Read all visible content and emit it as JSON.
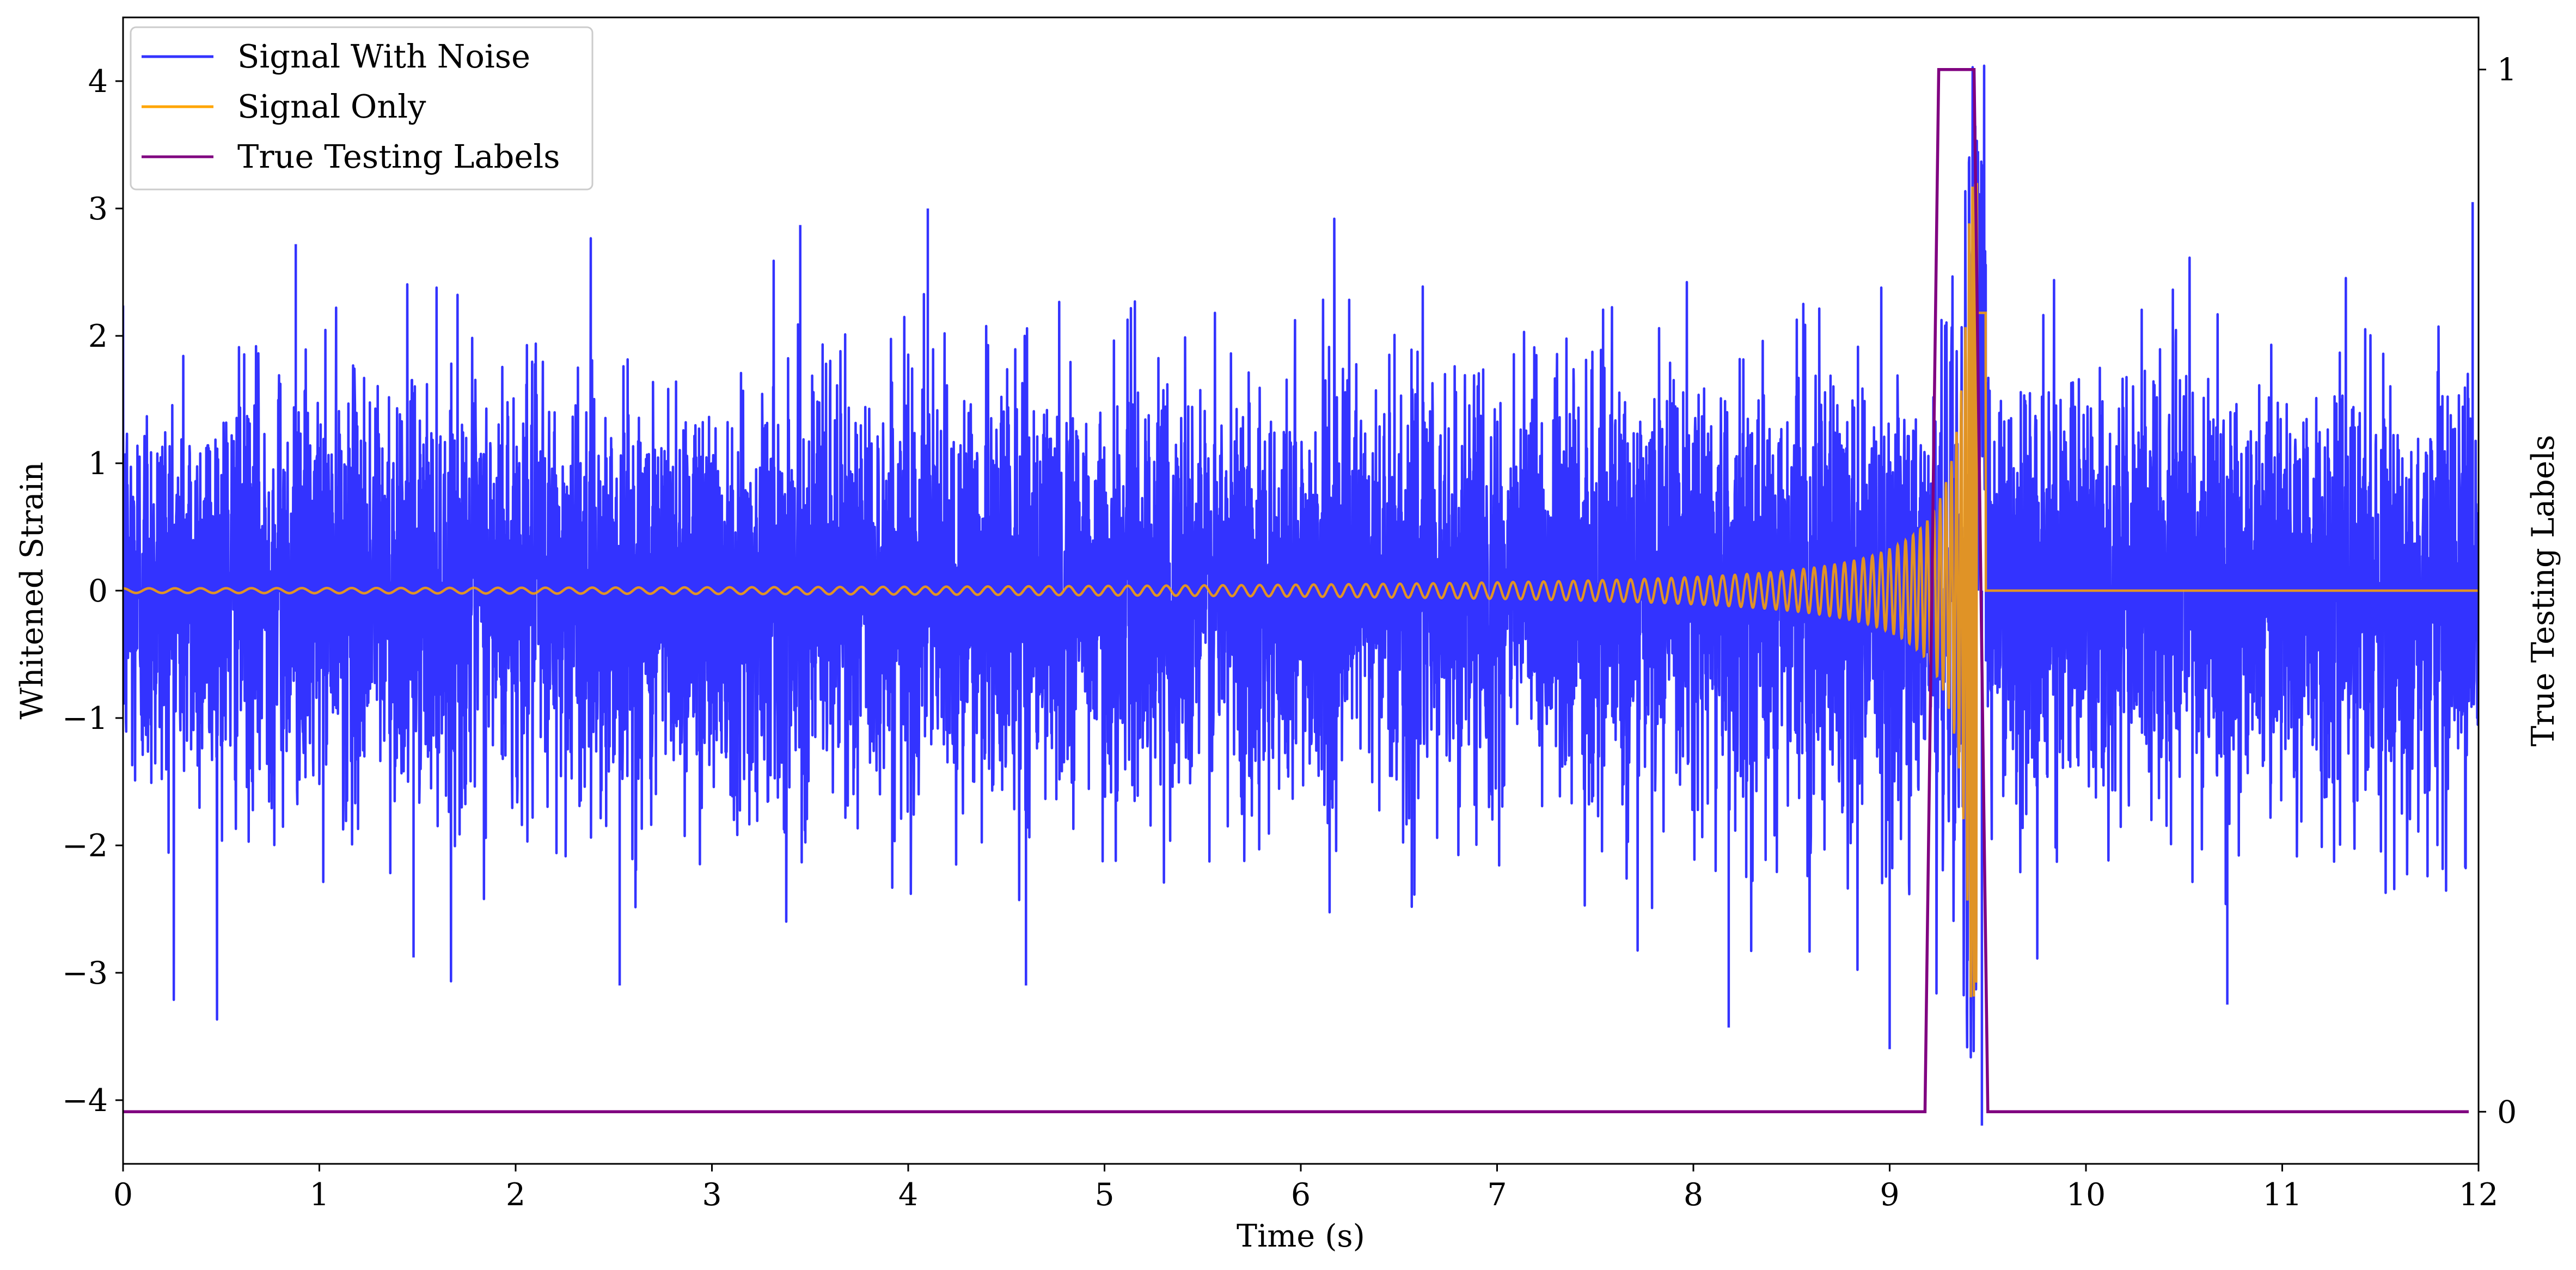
{
  "chart_data": {
    "type": "line",
    "xlabel": "Time (s)",
    "ylabel": "Whitened Strain",
    "y2label": "True Testing Labels",
    "xlim": [
      0,
      12
    ],
    "ylim": [
      -4.5,
      4.5
    ],
    "y2lim": [
      -0.05,
      1.05
    ],
    "x_ticks": [
      "0",
      "1",
      "2",
      "3",
      "4",
      "5",
      "6",
      "7",
      "8",
      "9",
      "10",
      "11",
      "12"
    ],
    "y_ticks": [
      "−4",
      "−3",
      "−2",
      "−1",
      "0",
      "1",
      "2",
      "3",
      "4"
    ],
    "y2_ticks": [
      "0",
      "1"
    ],
    "grid": false,
    "legend_position": "top-left",
    "series": [
      {
        "name": "Signal With Noise",
        "color": "#3333ff",
        "axis": "left",
        "description_values": {
          "noise_std_approx": 0.8,
          "notable_peaks": [
            [
              0.88,
              2.72
            ],
            [
              3.45,
              2.87
            ],
            [
              4.1,
              3.0
            ],
            [
              9.45,
              3.45
            ],
            [
              11.97,
              3.05
            ]
          ],
          "notable_troughs": [
            [
              1.48,
              -2.88
            ],
            [
              2.53,
              -3.1
            ],
            [
              4.6,
              -3.1
            ],
            [
              8.18,
              -3.43
            ],
            [
              9.0,
              -3.6
            ],
            [
              9.47,
              -4.2
            ],
            [
              10.72,
              -3.25
            ]
          ]
        }
      },
      {
        "name": "Signal Only",
        "color": "#ffa500",
        "axis": "left",
        "description_values": {
          "chirp_start": 0,
          "merger_time": 9.45,
          "peak_amplitude": 3.2,
          "post_merger_value": 0
        }
      },
      {
        "name": "True Testing Labels",
        "color": "#800080",
        "axis": "right",
        "x": [
          0,
          9.18,
          9.25,
          9.43,
          9.5,
          11.95
        ],
        "values": [
          0,
          0,
          1,
          1,
          0,
          0
        ]
      }
    ]
  }
}
